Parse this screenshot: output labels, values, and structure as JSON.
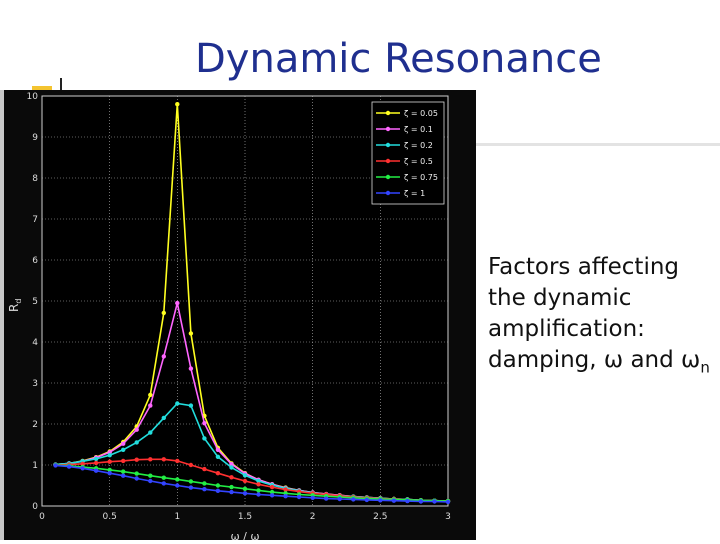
{
  "slide": {
    "title": "Dynamic Resonance",
    "bullet": "Factors affecting the dynamic amplification: damping, ω and ω",
    "bullet_subscript": "n"
  },
  "colors": {
    "title": "#1f2f8f",
    "accent": "#f4c430",
    "plot_background": "#000000"
  },
  "chart_data": {
    "type": "line",
    "title": "",
    "xlabel": "ω / ω",
    "ylabel": "R",
    "ylabel_subscript": "d",
    "xlim": [
      0,
      3
    ],
    "ylim": [
      0,
      10
    ],
    "xticks": [
      "0",
      "0.5",
      "1",
      "1.5",
      "2",
      "2.5",
      "3"
    ],
    "yticks": [
      "0",
      "1",
      "2",
      "3",
      "4",
      "5",
      "6",
      "7",
      "8",
      "9",
      "10"
    ],
    "grid": true,
    "legend_position": "top-right",
    "x": [
      0.1,
      0.2,
      0.3,
      0.4,
      0.5,
      0.6,
      0.7,
      0.8,
      0.9,
      1.0,
      1.1,
      1.2,
      1.3,
      1.4,
      1.5,
      1.6,
      1.7,
      1.8,
      1.9,
      2.0,
      2.1,
      2.2,
      2.3,
      2.4,
      2.5,
      2.6,
      2.7,
      2.8,
      2.9,
      3.0
    ],
    "series": [
      {
        "name": "ζ = 0.05",
        "color": "#ffff20",
        "values": [
          1.01,
          1.04,
          1.1,
          1.19,
          1.33,
          1.56,
          1.94,
          2.71,
          4.71,
          9.8,
          4.21,
          2.2,
          1.42,
          1.04,
          0.8,
          0.64,
          0.53,
          0.45,
          0.38,
          0.33,
          0.29,
          0.26,
          0.23,
          0.21,
          0.19,
          0.17,
          0.16,
          0.14,
          0.13,
          0.12
        ]
      },
      {
        "name": "ζ = 0.1",
        "color": "#ff66ff",
        "values": [
          1.01,
          1.04,
          1.09,
          1.18,
          1.31,
          1.52,
          1.86,
          2.45,
          3.65,
          4.95,
          3.35,
          2.02,
          1.37,
          1.02,
          0.79,
          0.64,
          0.53,
          0.44,
          0.38,
          0.33,
          0.29,
          0.26,
          0.23,
          0.21,
          0.19,
          0.17,
          0.16,
          0.14,
          0.13,
          0.12
        ]
      },
      {
        "name": "ζ = 0.2",
        "color": "#22dddd",
        "values": [
          1.01,
          1.04,
          1.09,
          1.15,
          1.24,
          1.37,
          1.55,
          1.79,
          2.15,
          2.5,
          2.45,
          1.65,
          1.2,
          0.94,
          0.75,
          0.61,
          0.51,
          0.43,
          0.37,
          0.32,
          0.28,
          0.25,
          0.23,
          0.21,
          0.19,
          0.17,
          0.16,
          0.14,
          0.13,
          0.12
        ]
      },
      {
        "name": "ζ = 0.5",
        "color": "#ff3030",
        "values": [
          1.0,
          1.01,
          1.03,
          1.05,
          1.08,
          1.1,
          1.13,
          1.14,
          1.14,
          1.1,
          1.0,
          0.9,
          0.8,
          0.7,
          0.61,
          0.53,
          0.46,
          0.4,
          0.35,
          0.31,
          0.28,
          0.25,
          0.22,
          0.2,
          0.18,
          0.17,
          0.15,
          0.14,
          0.13,
          0.12
        ]
      },
      {
        "name": "ζ = 0.75",
        "color": "#22ee44",
        "values": [
          1.0,
          0.98,
          0.95,
          0.92,
          0.88,
          0.84,
          0.79,
          0.74,
          0.69,
          0.65,
          0.6,
          0.55,
          0.5,
          0.46,
          0.42,
          0.38,
          0.34,
          0.31,
          0.28,
          0.26,
          0.24,
          0.22,
          0.2,
          0.18,
          0.17,
          0.16,
          0.15,
          0.14,
          0.13,
          0.12
        ]
      },
      {
        "name": "ζ = 1",
        "color": "#3344ff",
        "values": [
          0.99,
          0.96,
          0.92,
          0.86,
          0.8,
          0.74,
          0.67,
          0.61,
          0.55,
          0.5,
          0.45,
          0.41,
          0.37,
          0.34,
          0.31,
          0.28,
          0.26,
          0.24,
          0.22,
          0.2,
          0.18,
          0.17,
          0.16,
          0.15,
          0.14,
          0.13,
          0.12,
          0.11,
          0.11,
          0.1
        ]
      }
    ]
  }
}
